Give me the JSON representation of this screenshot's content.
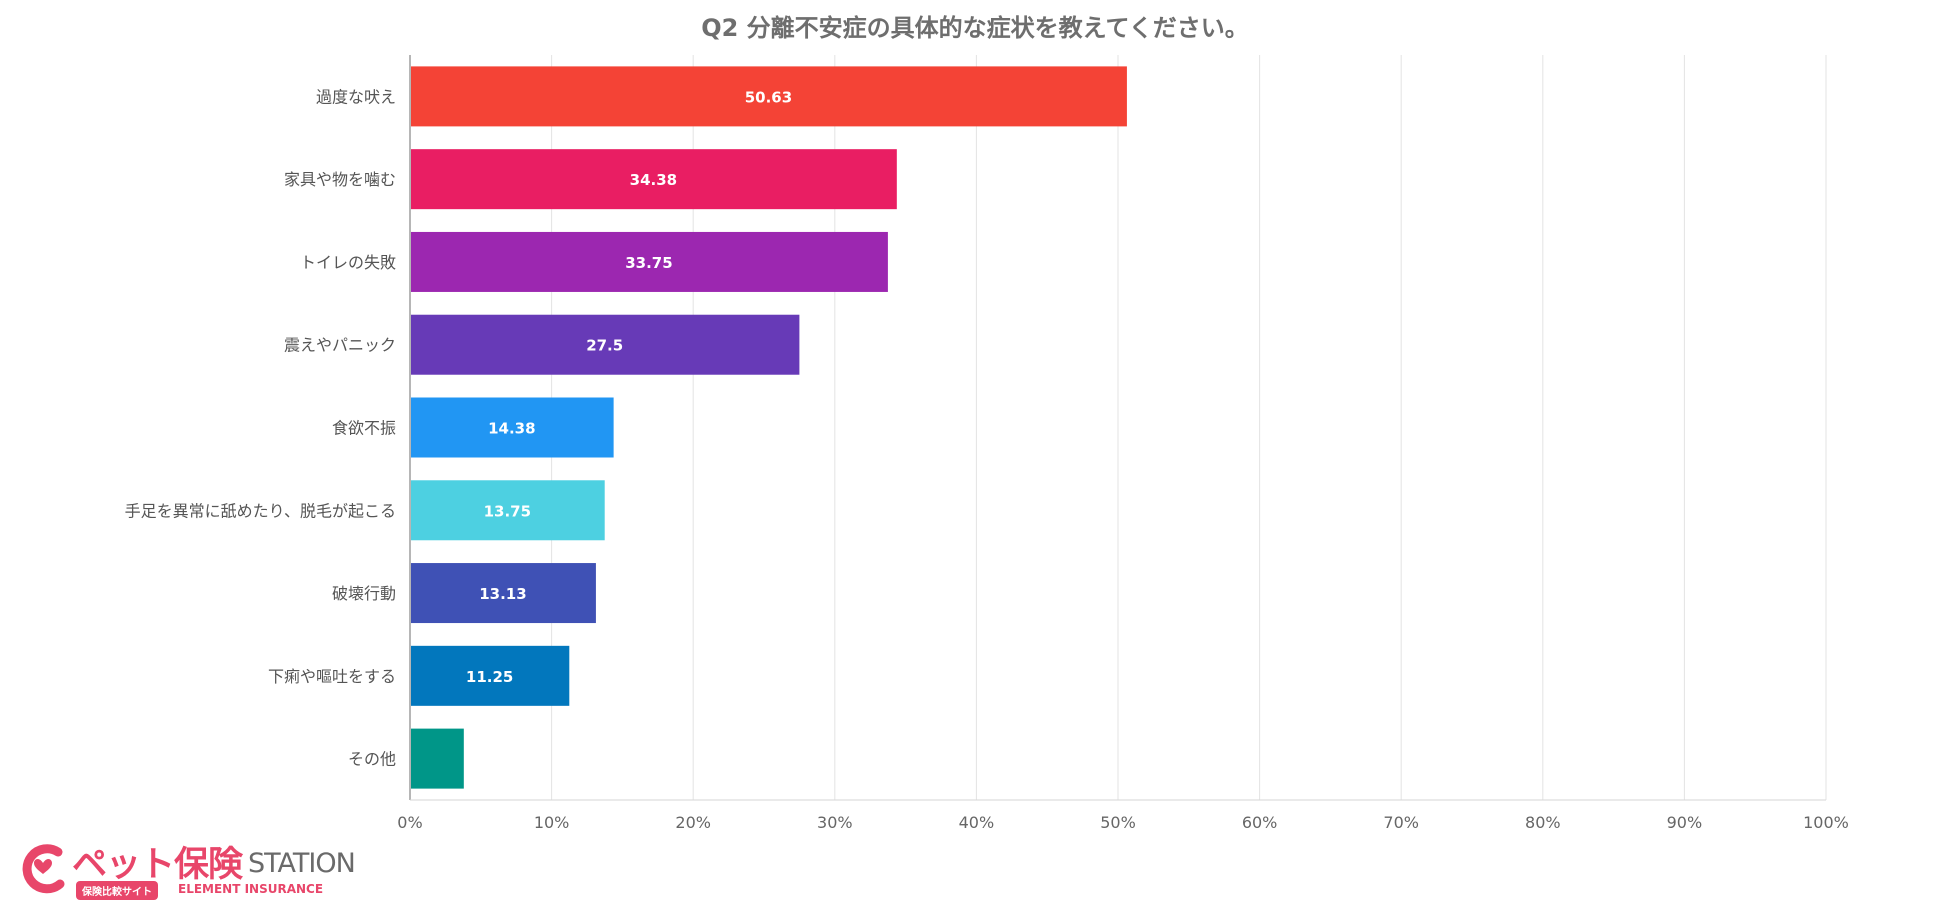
{
  "chart_data": {
    "type": "bar",
    "orientation": "horizontal",
    "title": "Q2 分離不安症の具体的な症状を教えてください。",
    "categories": [
      "過度な吠え",
      "家具や物を噛む",
      "トイレの失敗",
      "震えやパニック",
      "食欲不振",
      "手足を異常に舐めたり、脱毛が起こる",
      "破壊行動",
      "下痢や嘔吐をする",
      "その他"
    ],
    "values": [
      50.63,
      34.38,
      33.75,
      27.5,
      14.38,
      13.75,
      13.13,
      11.25,
      3.8
    ],
    "value_labels": [
      "50.63",
      "34.38",
      "33.75",
      "27.5",
      "14.38",
      "13.75",
      "13.13",
      "11.25",
      ""
    ],
    "colors": [
      "#f44336",
      "#e91e63",
      "#9c27b0",
      "#673ab7",
      "#2196f3",
      "#4dd0e1",
      "#3f51b5",
      "#0277bd",
      "#009688"
    ],
    "x_ticks": [
      "0%",
      "10%",
      "20%",
      "30%",
      "40%",
      "50%",
      "60%",
      "70%",
      "80%",
      "90%",
      "100%"
    ],
    "xlim": [
      0,
      100
    ],
    "grid": true,
    "legend": "none"
  },
  "logo": {
    "name_jp": "ペット保険",
    "name_en": "STATION",
    "badge": "保険比較サイト",
    "company": "ELEMENT INSURANCE",
    "color": "#e8466a"
  }
}
